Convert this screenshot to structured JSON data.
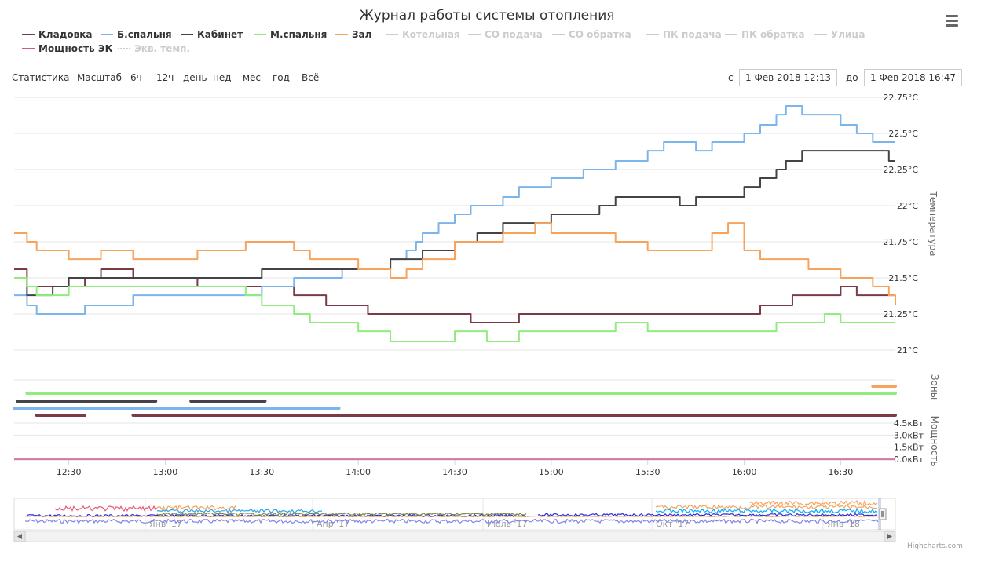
{
  "title": "Журнал работы системы отопления",
  "legend": [
    {
      "label": "Кладовка",
      "color": "#7a3b47",
      "visible": true
    },
    {
      "label": "Б.спальня",
      "color": "#7cb5ec",
      "visible": true
    },
    {
      "label": "Кабинет",
      "color": "#434348",
      "visible": true
    },
    {
      "label": "М.спальня",
      "color": "#90ed7d",
      "visible": true
    },
    {
      "label": "Зал",
      "color": "#f7a35c",
      "visible": true
    },
    {
      "label": "Котельная",
      "color": "#cccccc",
      "visible": false
    },
    {
      "label": "СО подача",
      "color": "#cccccc",
      "visible": false
    },
    {
      "label": "СО обратка",
      "color": "#cccccc",
      "visible": false
    },
    {
      "label": "ПК подача",
      "color": "#cccccc",
      "visible": false
    },
    {
      "label": "ПК обратка",
      "color": "#cccccc",
      "visible": false
    },
    {
      "label": "Улица",
      "color": "#cccccc",
      "visible": false
    },
    {
      "label": "Мощность ЭК",
      "color": "#d45a8a",
      "visible": true
    },
    {
      "label": "Экв. темп.",
      "color": "#cccccc",
      "visible": false
    }
  ],
  "range_selector": {
    "stats_label": "Статистика",
    "zoom_label": "Масштаб",
    "buttons": [
      "6ч",
      "12ч",
      "день",
      "нед",
      "мес",
      "год",
      "Всё"
    ],
    "from_label": "с",
    "from_value": "1 Фев 2018 12:13",
    "to_label": "до",
    "to_value": "1 Фев 2018 16:47"
  },
  "credits": "Highcharts.com",
  "navigator_labels": [
    "Янв '17",
    "Апр '17",
    "Июль '17",
    "Окт '17",
    "Янв '18"
  ],
  "chart_data": {
    "type": "line",
    "x_unit": "time (1 Feb 2018)",
    "x_range": [
      "12:13",
      "16:47"
    ],
    "x_ticks": [
      "12:30",
      "13:00",
      "13:30",
      "14:00",
      "14:30",
      "15:00",
      "15:30",
      "16:00",
      "16:30"
    ],
    "axes": {
      "temperature": {
        "label": "Температура",
        "unit": "°C",
        "range": [
          21.0,
          22.75
        ],
        "ticks": [
          "22.75°C",
          "22.5°C",
          "22.25°C",
          "22°C",
          "21.75°C",
          "21.5°C",
          "21.25°C",
          "21°C"
        ],
        "tick_values": [
          22.75,
          22.5,
          22.25,
          22.0,
          21.75,
          21.5,
          21.25,
          21.0
        ]
      },
      "zones": {
        "label": "Зоны"
      },
      "power": {
        "label": "Мощность",
        "unit": "кВт",
        "range": [
          0,
          4.5
        ],
        "ticks": [
          "4.5кВт",
          "3.0кВт",
          "1.5кВт",
          "0.0кВт"
        ],
        "tick_values": [
          4.5,
          3.0,
          1.5,
          0.0
        ]
      }
    },
    "grid": true,
    "temperature_series": [
      {
        "name": "Кладовка",
        "color": "#7a3b47",
        "points": [
          [
            "12:13",
            21.56
          ],
          [
            "12:17",
            21.44
          ],
          [
            "12:30",
            21.44
          ],
          [
            "12:35",
            21.5
          ],
          [
            "12:40",
            21.56
          ],
          [
            "12:50",
            21.5
          ],
          [
            "13:00",
            21.5
          ],
          [
            "13:10",
            21.44
          ],
          [
            "13:30",
            21.44
          ],
          [
            "13:40",
            21.38
          ],
          [
            "13:50",
            21.31
          ],
          [
            "14:00",
            21.31
          ],
          [
            "14:03",
            21.25
          ],
          [
            "14:30",
            21.25
          ],
          [
            "14:35",
            21.19
          ],
          [
            "14:45",
            21.19
          ],
          [
            "14:50",
            21.25
          ],
          [
            "15:30",
            21.25
          ],
          [
            "16:00",
            21.25
          ],
          [
            "16:05",
            21.31
          ],
          [
            "16:15",
            21.38
          ],
          [
            "16:25",
            21.38
          ],
          [
            "16:30",
            21.44
          ],
          [
            "16:35",
            21.38
          ],
          [
            "16:47",
            21.38
          ]
        ]
      },
      {
        "name": "Б.спальня",
        "color": "#7cb5ec",
        "points": [
          [
            "12:13",
            21.38
          ],
          [
            "12:17",
            21.31
          ],
          [
            "12:20",
            21.25
          ],
          [
            "12:33",
            21.25
          ],
          [
            "12:35",
            21.31
          ],
          [
            "12:45",
            21.31
          ],
          [
            "12:50",
            21.38
          ],
          [
            "13:10",
            21.38
          ],
          [
            "13:20",
            21.38
          ],
          [
            "13:30",
            21.44
          ],
          [
            "13:40",
            21.5
          ],
          [
            "13:50",
            21.5
          ],
          [
            "13:55",
            21.56
          ],
          [
            "14:10",
            21.63
          ],
          [
            "14:15",
            21.69
          ],
          [
            "14:18",
            21.75
          ],
          [
            "14:20",
            21.81
          ],
          [
            "14:25",
            21.88
          ],
          [
            "14:30",
            21.94
          ],
          [
            "14:35",
            22.0
          ],
          [
            "14:45",
            22.06
          ],
          [
            "14:50",
            22.13
          ],
          [
            "15:00",
            22.19
          ],
          [
            "15:10",
            22.25
          ],
          [
            "15:20",
            22.31
          ],
          [
            "15:30",
            22.38
          ],
          [
            "15:35",
            22.44
          ],
          [
            "15:45",
            22.38
          ],
          [
            "15:50",
            22.44
          ],
          [
            "16:00",
            22.5
          ],
          [
            "16:05",
            22.56
          ],
          [
            "16:10",
            22.63
          ],
          [
            "16:13",
            22.69
          ],
          [
            "16:18",
            22.63
          ],
          [
            "16:30",
            22.56
          ],
          [
            "16:35",
            22.5
          ],
          [
            "16:40",
            22.44
          ],
          [
            "16:47",
            22.44
          ]
        ]
      },
      {
        "name": "Кабинет",
        "color": "#434348",
        "points": [
          [
            "12:13",
            21.5
          ],
          [
            "12:17",
            21.38
          ],
          [
            "12:25",
            21.44
          ],
          [
            "12:28",
            21.44
          ],
          [
            "12:30",
            21.5
          ],
          [
            "12:45",
            21.5
          ],
          [
            "13:00",
            21.5
          ],
          [
            "13:20",
            21.5
          ],
          [
            "13:30",
            21.56
          ],
          [
            "13:50",
            21.56
          ],
          [
            "14:00",
            21.56
          ],
          [
            "14:05",
            21.56
          ],
          [
            "14:10",
            21.63
          ],
          [
            "14:20",
            21.69
          ],
          [
            "14:30",
            21.75
          ],
          [
            "14:37",
            21.81
          ],
          [
            "14:45",
            21.88
          ],
          [
            "15:00",
            21.94
          ],
          [
            "15:15",
            22.0
          ],
          [
            "15:20",
            22.06
          ],
          [
            "15:30",
            22.06
          ],
          [
            "15:40",
            22.0
          ],
          [
            "15:45",
            22.06
          ],
          [
            "16:00",
            22.13
          ],
          [
            "16:05",
            22.19
          ],
          [
            "16:10",
            22.25
          ],
          [
            "16:13",
            22.31
          ],
          [
            "16:18",
            22.38
          ],
          [
            "16:30",
            22.38
          ],
          [
            "16:35",
            22.38
          ],
          [
            "16:45",
            22.31
          ],
          [
            "16:47",
            22.31
          ]
        ]
      },
      {
        "name": "М.спальня",
        "color": "#90ed7d",
        "points": [
          [
            "12:13",
            21.5
          ],
          [
            "12:17",
            21.44
          ],
          [
            "12:20",
            21.38
          ],
          [
            "12:25",
            21.38
          ],
          [
            "12:30",
            21.44
          ],
          [
            "12:45",
            21.44
          ],
          [
            "13:00",
            21.44
          ],
          [
            "13:10",
            21.44
          ],
          [
            "13:25",
            21.38
          ],
          [
            "13:30",
            21.31
          ],
          [
            "13:40",
            21.25
          ],
          [
            "13:45",
            21.19
          ],
          [
            "13:55",
            21.19
          ],
          [
            "14:00",
            21.13
          ],
          [
            "14:10",
            21.06
          ],
          [
            "14:25",
            21.06
          ],
          [
            "14:30",
            21.13
          ],
          [
            "14:40",
            21.06
          ],
          [
            "14:50",
            21.13
          ],
          [
            "15:10",
            21.13
          ],
          [
            "15:20",
            21.19
          ],
          [
            "15:30",
            21.13
          ],
          [
            "16:00",
            21.13
          ],
          [
            "16:10",
            21.19
          ],
          [
            "16:20",
            21.19
          ],
          [
            "16:25",
            21.25
          ],
          [
            "16:30",
            21.19
          ],
          [
            "16:47",
            21.19
          ]
        ]
      },
      {
        "name": "Зал",
        "color": "#f7a35c",
        "points": [
          [
            "12:13",
            21.81
          ],
          [
            "12:17",
            21.75
          ],
          [
            "12:20",
            21.69
          ],
          [
            "12:25",
            21.69
          ],
          [
            "12:30",
            21.63
          ],
          [
            "12:40",
            21.69
          ],
          [
            "12:50",
            21.63
          ],
          [
            "13:00",
            21.63
          ],
          [
            "13:10",
            21.69
          ],
          [
            "13:25",
            21.75
          ],
          [
            "13:40",
            21.69
          ],
          [
            "13:45",
            21.63
          ],
          [
            "14:00",
            21.56
          ],
          [
            "14:10",
            21.5
          ],
          [
            "14:15",
            21.56
          ],
          [
            "14:20",
            21.63
          ],
          [
            "14:30",
            21.75
          ],
          [
            "14:45",
            21.81
          ],
          [
            "14:55",
            21.88
          ],
          [
            "15:00",
            21.81
          ],
          [
            "15:10",
            21.81
          ],
          [
            "15:20",
            21.75
          ],
          [
            "15:30",
            21.69
          ],
          [
            "15:40",
            21.69
          ],
          [
            "15:50",
            21.81
          ],
          [
            "15:55",
            21.88
          ],
          [
            "16:00",
            21.69
          ],
          [
            "16:05",
            21.63
          ],
          [
            "16:20",
            21.56
          ],
          [
            "16:30",
            21.5
          ],
          [
            "16:40",
            21.44
          ],
          [
            "16:45",
            21.38
          ],
          [
            "16:47",
            21.31
          ]
        ]
      }
    ],
    "zone_series": [
      {
        "name": "Зал",
        "color": "#f7a35c",
        "segments": [
          [
            "16:40",
            "16:47"
          ]
        ]
      },
      {
        "name": "М.спальня",
        "color": "#90ed7d",
        "segments": [
          [
            "12:17",
            "16:47"
          ]
        ]
      },
      {
        "name": "Кабинет",
        "color": "#434348",
        "segments": [
          [
            "12:14",
            "12:57"
          ],
          [
            "13:08",
            "13:31"
          ]
        ]
      },
      {
        "name": "Б.спальня",
        "color": "#7cb5ec",
        "segments": [
          [
            "12:13",
            "13:54"
          ]
        ]
      },
      {
        "name": "Кладовка",
        "color": "#7a3b47",
        "segments": [
          [
            "12:20",
            "12:35"
          ],
          [
            "12:50",
            "16:47"
          ]
        ]
      }
    ],
    "power_series": [
      {
        "name": "Мощность ЭК",
        "color": "#d45a8a",
        "points": [
          [
            "12:13",
            0.0
          ],
          [
            "16:47",
            0.0
          ]
        ]
      }
    ]
  }
}
